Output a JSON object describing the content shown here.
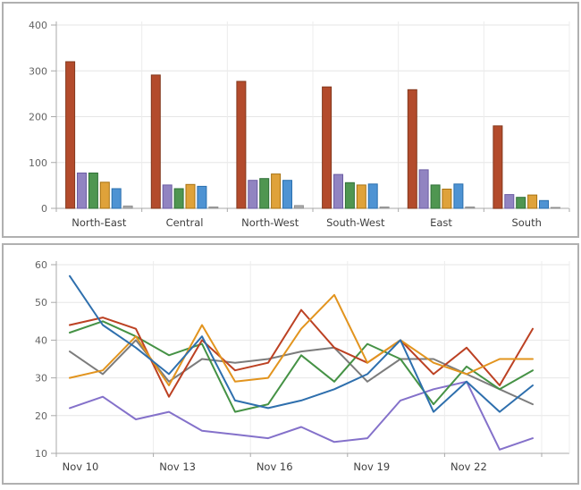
{
  "chart_data": [
    {
      "type": "bar",
      "title": "",
      "xlabel": "",
      "ylabel": "",
      "ylim": [
        0,
        400
      ],
      "yticks": [
        0,
        100,
        200,
        300,
        400
      ],
      "grid": true,
      "legend": "none",
      "categories": [
        "North-East",
        "Central",
        "North-West",
        "South-West",
        "East",
        "South"
      ],
      "series": [
        {
          "name": "redbrown",
          "color": "#b34b2c",
          "border": "#83381d",
          "values": [
            320,
            291,
            277,
            265,
            259,
            180
          ]
        },
        {
          "name": "purple",
          "color": "#9184c1",
          "border": "#6b5ca3",
          "values": [
            77,
            51,
            61,
            74,
            84,
            30
          ]
        },
        {
          "name": "green",
          "color": "#4f9651",
          "border": "#2f7038",
          "values": [
            77,
            43,
            65,
            56,
            51,
            24
          ]
        },
        {
          "name": "orange",
          "color": "#dfa23a",
          "border": "#a87312",
          "values": [
            57,
            52,
            75,
            51,
            42,
            29
          ]
        },
        {
          "name": "blue",
          "color": "#4e93d3",
          "border": "#2a6fae",
          "values": [
            43,
            48,
            61,
            53,
            53,
            17
          ]
        },
        {
          "name": "gray",
          "color": "#ababab",
          "border": "#8f8f8f",
          "values": [
            5,
            3,
            6,
            3,
            3,
            2
          ]
        }
      ]
    },
    {
      "type": "line",
      "title": "",
      "xlabel": "",
      "ylabel": "",
      "ylim": [
        10,
        60
      ],
      "yticks": [
        10,
        20,
        30,
        40,
        50,
        60
      ],
      "grid": true,
      "legend": "none",
      "x": [
        "Nov 10",
        "Nov 11",
        "Nov 12",
        "Nov 13",
        "Nov 14",
        "Nov 15",
        "Nov 16",
        "Nov 17",
        "Nov 18",
        "Nov 19",
        "Nov 20",
        "Nov 21",
        "Nov 22",
        "Nov 23",
        "Nov 24"
      ],
      "x_tick_labels": [
        "Nov 10",
        "Nov 13",
        "Nov 16",
        "Nov 19",
        "Nov 22"
      ],
      "series": [
        {
          "name": "gray",
          "color": "#7c7c7c",
          "values": [
            37,
            31,
            40,
            29,
            35,
            34,
            35,
            37,
            38,
            29,
            35,
            35,
            31,
            27,
            23
          ]
        },
        {
          "name": "purple",
          "color": "#8471ca",
          "values": [
            22,
            25,
            19,
            21,
            16,
            15,
            14,
            17,
            13,
            14,
            24,
            27,
            29,
            11,
            14
          ]
        },
        {
          "name": "green",
          "color": "#459245",
          "values": [
            42,
            45,
            41,
            36,
            39,
            21,
            23,
            36,
            29,
            39,
            35,
            23,
            33,
            27,
            32
          ]
        },
        {
          "name": "red",
          "color": "#bc4123",
          "values": [
            44,
            46,
            43,
            25,
            40,
            32,
            34,
            48,
            38,
            34,
            40,
            31,
            38,
            28,
            43
          ]
        },
        {
          "name": "orange",
          "color": "#e2941e",
          "values": [
            30,
            32,
            41,
            28,
            44,
            29,
            30,
            43,
            52,
            34,
            40,
            34,
            31,
            35,
            35
          ]
        },
        {
          "name": "blue",
          "color": "#2e6fad",
          "values": [
            57,
            44,
            38,
            31,
            41,
            24,
            22,
            24,
            27,
            31,
            40,
            21,
            29,
            21,
            28
          ]
        }
      ]
    }
  ],
  "style_colors": {
    "gridline": "#e6e6e6",
    "v_gridline": "#ececec",
    "axis": "#a9a9a9",
    "y_tick_label": "#636363",
    "x_tick_label": "#3e3e3e"
  }
}
